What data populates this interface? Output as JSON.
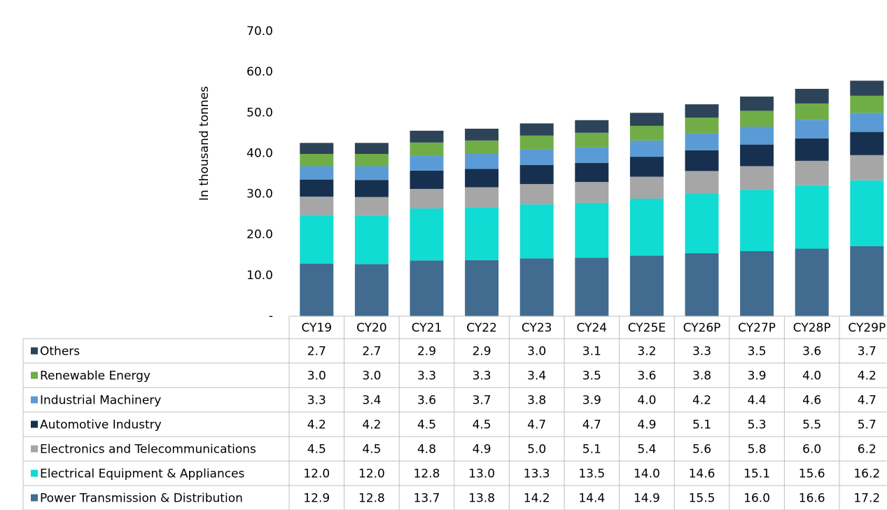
{
  "chart_data": {
    "type": "stacked_bar",
    "y_axis_label": "In thousand tonnes",
    "categories": [
      "CY19",
      "CY20",
      "CY21",
      "CY22",
      "CY23",
      "CY24",
      "CY25E",
      "CY26P",
      "CY27P",
      "CY28P",
      "CY29P"
    ],
    "ylim": [
      0,
      70
    ],
    "yticks": [
      {
        "value": 0,
        "label": "-"
      },
      {
        "value": 10,
        "label": "10.0"
      },
      {
        "value": 20,
        "label": "20.0"
      },
      {
        "value": 30,
        "label": "30.0"
      },
      {
        "value": 40,
        "label": "40.0"
      },
      {
        "value": 50,
        "label": "50.0"
      },
      {
        "value": 60,
        "label": "60.0"
      },
      {
        "value": 70,
        "label": "70.0"
      }
    ],
    "series": [
      {
        "name": "Power Transmission & Distribution",
        "color": "#416c8f",
        "values": [
          12.9,
          12.8,
          13.7,
          13.8,
          14.2,
          14.4,
          14.9,
          15.5,
          16.0,
          16.6,
          17.2
        ],
        "value_labels": [
          "12.9",
          "12.8",
          "13.7",
          "13.8",
          "14.2",
          "14.4",
          "14.9",
          "15.5",
          "16.0",
          "16.6",
          "17.2"
        ]
      },
      {
        "name": "Electrical Equipment & Appliances",
        "color": "#10dcd3",
        "values": [
          12.0,
          12.0,
          12.8,
          13.0,
          13.3,
          13.5,
          14.0,
          14.6,
          15.1,
          15.6,
          16.2
        ],
        "value_labels": [
          "12.0",
          "12.0",
          "12.8",
          "13.0",
          "13.3",
          "13.5",
          "14.0",
          "14.6",
          "15.1",
          "15.6",
          "16.2"
        ]
      },
      {
        "name": "Electronics and Telecommunications",
        "color": "#a6a6a6",
        "values": [
          4.5,
          4.5,
          4.8,
          4.9,
          5.0,
          5.1,
          5.4,
          5.6,
          5.8,
          6.0,
          6.2
        ],
        "value_labels": [
          "4.5",
          "4.5",
          "4.8",
          "4.9",
          "5.0",
          "5.1",
          "5.4",
          "5.6",
          "5.8",
          "6.0",
          "6.2"
        ]
      },
      {
        "name": "Automotive Industry",
        "color": "#17304f",
        "values": [
          4.2,
          4.2,
          4.5,
          4.5,
          4.7,
          4.7,
          4.9,
          5.1,
          5.3,
          5.5,
          5.7
        ],
        "value_labels": [
          "4.2",
          "4.2",
          "4.5",
          "4.5",
          "4.7",
          "4.7",
          "4.9",
          "5.1",
          "5.3",
          "5.5",
          "5.7"
        ]
      },
      {
        "name": "Industrial Machinery",
        "color": "#5b9bd5",
        "values": [
          3.3,
          3.4,
          3.6,
          3.7,
          3.8,
          3.9,
          4.0,
          4.2,
          4.4,
          4.6,
          4.7
        ],
        "value_labels": [
          "3.3",
          "3.4",
          "3.6",
          "3.7",
          "3.8",
          "3.9",
          "4.0",
          "4.2",
          "4.4",
          "4.6",
          "4.7"
        ]
      },
      {
        "name": "Renewable Energy",
        "color": "#70ad47",
        "values": [
          3.0,
          3.0,
          3.3,
          3.3,
          3.4,
          3.5,
          3.6,
          3.8,
          3.9,
          4.0,
          4.2
        ],
        "value_labels": [
          "3.0",
          "3.0",
          "3.3",
          "3.3",
          "3.4",
          "3.5",
          "3.6",
          "3.8",
          "3.9",
          "4.0",
          "4.2"
        ]
      },
      {
        "name": "Others",
        "color": "#2d4357",
        "values": [
          2.7,
          2.7,
          2.9,
          2.9,
          3.0,
          3.1,
          3.2,
          3.3,
          3.5,
          3.6,
          3.7
        ],
        "value_labels": [
          "2.7",
          "2.7",
          "2.9",
          "2.9",
          "3.0",
          "3.1",
          "3.2",
          "3.3",
          "3.5",
          "3.6",
          "3.7"
        ]
      }
    ]
  }
}
